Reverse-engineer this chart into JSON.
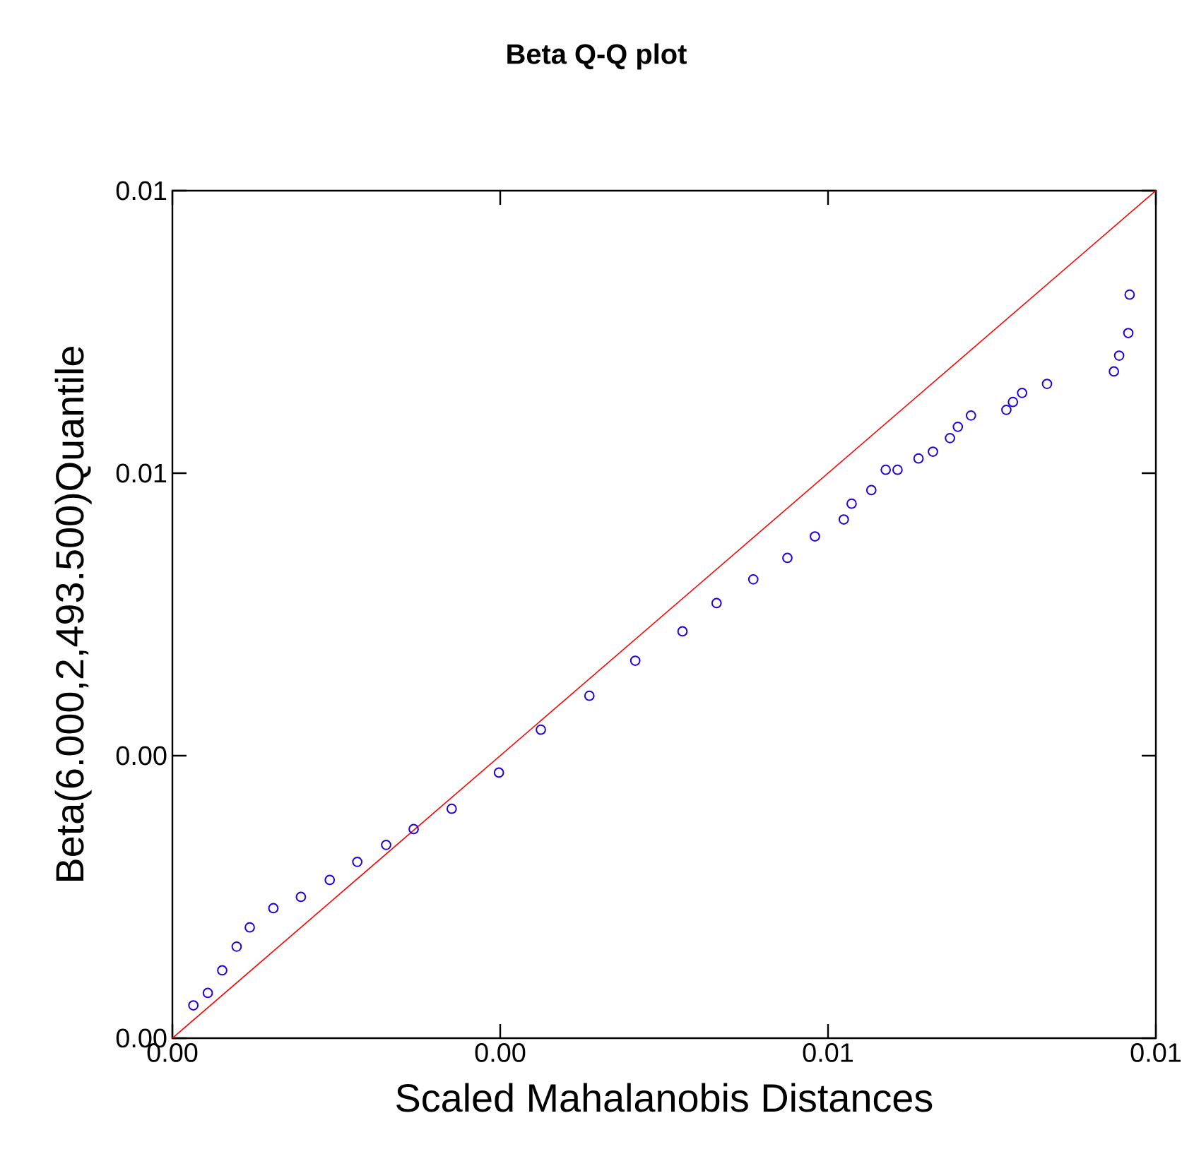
{
  "chart_data": {
    "type": "scatter",
    "title": "Beta Q-Q plot",
    "xlabel": "Scaled Mahalanobis Distances",
    "ylabel": "Beta(6.000,2,493.500)Quantile",
    "xlim": [
      0,
      0.0075
    ],
    "ylim": [
      0,
      0.0075
    ],
    "xticks": [
      {
        "value": 0,
        "label": "0.00"
      },
      {
        "value": 0.0025,
        "label": "0.00"
      },
      {
        "value": 0.005,
        "label": "0.01"
      },
      {
        "value": 0.0075,
        "label": "0.01"
      }
    ],
    "yticks": [
      {
        "value": 0,
        "label": "0.00"
      },
      {
        "value": 0.0025,
        "label": "0.00"
      },
      {
        "value": 0.005,
        "label": "0.01"
      },
      {
        "value": 0.0075,
        "label": "0.01"
      }
    ],
    "grid": false,
    "series": [
      {
        "type": "line",
        "color": "#ff0000",
        "marker": "none",
        "line_style": "solid",
        "x": [
          0,
          0.0075
        ],
        "values": [
          0,
          0.0075
        ]
      },
      {
        "color": "#2200dd",
        "marker": "circle",
        "x": [
          0.00016,
          0.00027,
          0.00038,
          0.00049,
          0.00059,
          0.00077,
          0.00098,
          0.0012,
          0.00141,
          0.00163,
          0.00184,
          0.00213,
          0.00249,
          0.00281,
          0.00318,
          0.00353,
          0.00389,
          0.00415,
          0.00443,
          0.00469,
          0.0049,
          0.00512,
          0.00518,
          0.00533,
          0.00544,
          0.00553,
          0.00569,
          0.0058,
          0.00593,
          0.00599,
          0.00609,
          0.00636,
          0.00641,
          0.00648,
          0.00667,
          0.00718,
          0.00722,
          0.00729,
          0.0073
        ],
        "values": [
          0.00029,
          0.0004,
          0.0006,
          0.00081,
          0.00098,
          0.00115,
          0.00125,
          0.0014,
          0.00156,
          0.00171,
          0.00185,
          0.00203,
          0.00235,
          0.00273,
          0.00303,
          0.00334,
          0.0036,
          0.00385,
          0.00406,
          0.00425,
          0.00444,
          0.00459,
          0.00473,
          0.00485,
          0.00503,
          0.00503,
          0.00513,
          0.00519,
          0.00531,
          0.00541,
          0.00551,
          0.00556,
          0.00563,
          0.00571,
          0.00579,
          0.0059,
          0.00604,
          0.00624,
          0.00658
        ]
      }
    ]
  }
}
